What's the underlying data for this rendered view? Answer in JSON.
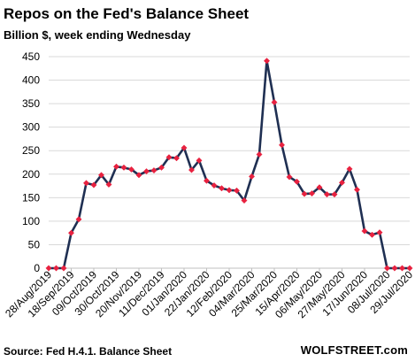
{
  "chart_data": {
    "type": "line",
    "title": "Repos on the Fed's Balance Sheet",
    "subtitle": "Billion $, week ending Wednesday",
    "ylim": [
      0,
      450
    ],
    "y_ticks": [
      0,
      50,
      100,
      150,
      200,
      250,
      300,
      350,
      400,
      450
    ],
    "grid": true,
    "x_tick_labels": [
      "28/Aug/2019",
      "18/Sep/2019",
      "09/Oct/2019",
      "30/Oct/2019",
      "20/Nov/2019",
      "11/Dec/2019",
      "01/Jan/2020",
      "22/Jan/2020",
      "12/Feb/2020",
      "04/Mar/2020",
      "25/Mar/2020",
      "15/Apr/2020",
      "06/May/2020",
      "27/May/2020",
      "17/Jun/2020",
      "08/Jul/2020",
      "29/Jul/2020"
    ],
    "x": [
      "28/Aug/2019",
      "04/Sep/2019",
      "11/Sep/2019",
      "18/Sep/2019",
      "25/Sep/2019",
      "02/Oct/2019",
      "09/Oct/2019",
      "16/Oct/2019",
      "23/Oct/2019",
      "30/Oct/2019",
      "06/Nov/2019",
      "13/Nov/2019",
      "20/Nov/2019",
      "27/Nov/2019",
      "04/Dec/2019",
      "11/Dec/2019",
      "18/Dec/2019",
      "25/Dec/2019",
      "01/Jan/2020",
      "08/Jan/2020",
      "15/Jan/2020",
      "22/Jan/2020",
      "29/Jan/2020",
      "05/Feb/2020",
      "12/Feb/2020",
      "19/Feb/2020",
      "26/Feb/2020",
      "04/Mar/2020",
      "11/Mar/2020",
      "18/Mar/2020",
      "25/Mar/2020",
      "01/Apr/2020",
      "08/Apr/2020",
      "15/Apr/2020",
      "22/Apr/2020",
      "29/Apr/2020",
      "06/May/2020",
      "13/May/2020",
      "20/May/2020",
      "27/May/2020",
      "03/Jun/2020",
      "10/Jun/2020",
      "17/Jun/2020",
      "24/Jun/2020",
      "01/Jul/2020",
      "08/Jul/2020",
      "15/Jul/2020",
      "22/Jul/2020",
      "29/Jul/2020"
    ],
    "series": [
      {
        "values": [
          0,
          0,
          0,
          75,
          104,
          181,
          177,
          198,
          178,
          216,
          214,
          210,
          198,
          206,
          208,
          214,
          236,
          234,
          256,
          209,
          229,
          186,
          176,
          170,
          166,
          165,
          144,
          195,
          242,
          441,
          353,
          262,
          194,
          184,
          158,
          159,
          172,
          157,
          157,
          182,
          211,
          167,
          79,
          71,
          76,
          0,
          0,
          0,
          0
        ]
      }
    ],
    "colors": {
      "line": "#1f2f52",
      "marker": "#e8213f",
      "grid": "#d9d9d9",
      "axis": "#bfbfbf",
      "tick_text": "#000000"
    }
  },
  "source": "Source: Fed H.4.1. Balance Sheet",
  "watermark": "WOLFSTREET.com"
}
